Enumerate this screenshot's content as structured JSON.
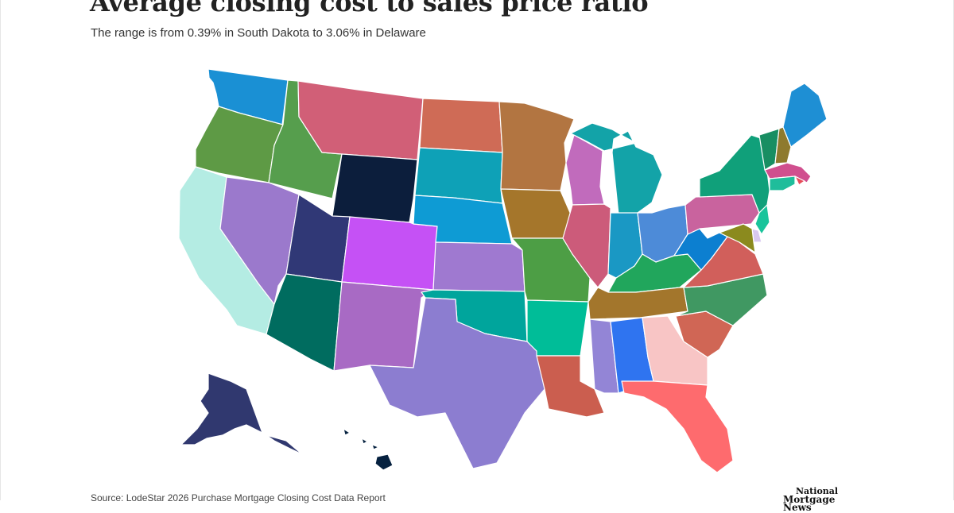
{
  "title": "Average closing cost to sales price ratio",
  "subtitle": "The range is from 0.39% in South Dakota to 3.06% in Delaware",
  "source": "Source: LodeStar 2026 Purchase Mortgage Closing Cost Data Report",
  "logo": {
    "line1": "National",
    "line2": "Mortgage News"
  },
  "states": [
    {
      "id": "WA",
      "color": "#1a90d4"
    },
    {
      "id": "OR",
      "color": "#5e9a45"
    },
    {
      "id": "CA",
      "color": "#b4ece3"
    },
    {
      "id": "ID",
      "color": "#569e4d"
    },
    {
      "id": "NV",
      "color": "#9b79cc"
    },
    {
      "id": "MT",
      "color": "#d15f77"
    },
    {
      "id": "WY",
      "color": "#0c1e3c"
    },
    {
      "id": "UT",
      "color": "#303876"
    },
    {
      "id": "AZ",
      "color": "#006c5f"
    },
    {
      "id": "CO",
      "color": "#c551f5"
    },
    {
      "id": "NM",
      "color": "#a86ac4"
    },
    {
      "id": "ND",
      "color": "#cf6b56"
    },
    {
      "id": "SD",
      "color": "#0ea1b7"
    },
    {
      "id": "NE",
      "color": "#0e9bd4"
    },
    {
      "id": "KS",
      "color": "#9f79d0"
    },
    {
      "id": "OK",
      "color": "#00a59c"
    },
    {
      "id": "TX",
      "color": "#8c7dd0"
    },
    {
      "id": "MN",
      "color": "#b27541"
    },
    {
      "id": "IA",
      "color": "#a5762b"
    },
    {
      "id": "MO",
      "color": "#4d9e45"
    },
    {
      "id": "AR",
      "color": "#00bd98"
    },
    {
      "id": "LA",
      "color": "#cb5e4f"
    },
    {
      "id": "WI",
      "color": "#c16bbc"
    },
    {
      "id": "IL",
      "color": "#cc5b7a"
    },
    {
      "id": "MI",
      "color": "#13a3a8"
    },
    {
      "id": "IN",
      "color": "#1a98c4"
    },
    {
      "id": "OH",
      "color": "#4d8bd8"
    },
    {
      "id": "KY",
      "color": "#21a65c"
    },
    {
      "id": "TN",
      "color": "#a3762c"
    },
    {
      "id": "MS",
      "color": "#9385d6"
    },
    {
      "id": "AL",
      "color": "#2f74f0"
    },
    {
      "id": "GA",
      "color": "#f8c5c5"
    },
    {
      "id": "FL",
      "color": "#fe6b6e"
    },
    {
      "id": "SC",
      "color": "#d06655"
    },
    {
      "id": "NC",
      "color": "#409862"
    },
    {
      "id": "VA",
      "color": "#d15f5b"
    },
    {
      "id": "WV",
      "color": "#0c7fd0"
    },
    {
      "id": "PA",
      "color": "#c9639e"
    },
    {
      "id": "NY",
      "color": "#10a07a"
    },
    {
      "id": "VT",
      "color": "#188e62"
    },
    {
      "id": "NH",
      "color": "#8e7a2d"
    },
    {
      "id": "ME",
      "color": "#1e8fd4"
    },
    {
      "id": "MA",
      "color": "#d04f8e"
    },
    {
      "id": "RI",
      "color": "#e74c5a"
    },
    {
      "id": "CT",
      "color": "#1fbd9b"
    },
    {
      "id": "NJ",
      "color": "#19c49b"
    },
    {
      "id": "DE",
      "color": "#d8c8ef"
    },
    {
      "id": "MD",
      "color": "#8b8a1e"
    },
    {
      "id": "AK",
      "color": "#30386f"
    },
    {
      "id": "HI",
      "color": "#05213f"
    }
  ]
}
